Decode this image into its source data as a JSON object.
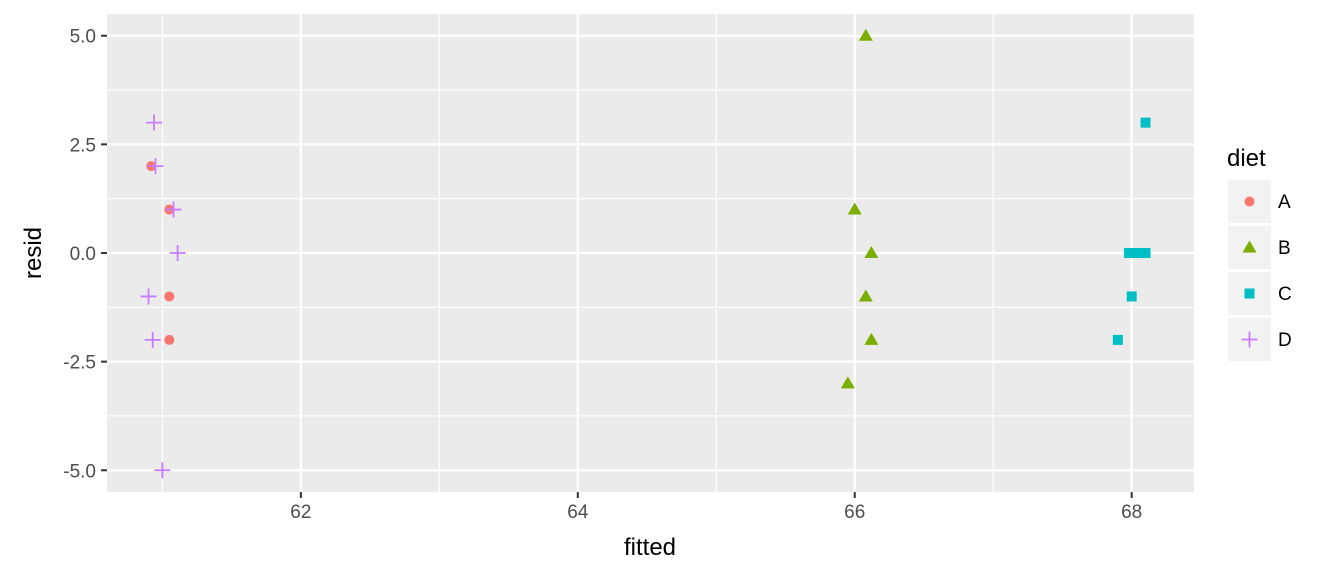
{
  "chart_data": {
    "type": "scatter",
    "xlabel": "fitted",
    "ylabel": "resid",
    "xlim": [
      60.6,
      68.45
    ],
    "ylim": [
      -5.5,
      5.5
    ],
    "x_ticks": [
      62,
      64,
      66,
      68
    ],
    "x_minor": [
      61,
      63,
      65,
      67
    ],
    "y_ticks": [
      5.0,
      2.5,
      0.0,
      -2.5,
      -5.0
    ],
    "y_tick_labels": [
      "5.0",
      "2.5",
      "0.0",
      "-2.5",
      "-5.0"
    ],
    "y_minor": [
      3.75,
      1.25,
      -1.25,
      -3.75
    ],
    "grid": true,
    "legend": {
      "title": "diet",
      "position": "right"
    },
    "series": [
      {
        "name": "A",
        "shape": "circle",
        "color": "#F8766D",
        "points": [
          [
            60.92,
            2.0
          ],
          [
            61.05,
            1.0
          ],
          [
            61.05,
            -1.0
          ],
          [
            61.05,
            -2.0
          ]
        ]
      },
      {
        "name": "B",
        "shape": "triangle",
        "color": "#7CAE00",
        "points": [
          [
            66.08,
            5.0
          ],
          [
            66.0,
            1.0
          ],
          [
            66.12,
            0.0
          ],
          [
            66.08,
            -1.0
          ],
          [
            66.12,
            -2.0
          ],
          [
            65.95,
            -3.0
          ]
        ]
      },
      {
        "name": "C",
        "shape": "square",
        "color": "#00BFC4",
        "points": [
          [
            68.1,
            3.0
          ],
          [
            67.98,
            0.0
          ],
          [
            68.04,
            0.0
          ],
          [
            68.1,
            0.0
          ],
          [
            68.0,
            -1.0
          ],
          [
            67.9,
            -2.0
          ]
        ]
      },
      {
        "name": "D",
        "shape": "plus",
        "color": "#C77CFF",
        "points": [
          [
            60.94,
            3.0
          ],
          [
            60.95,
            2.0
          ],
          [
            61.08,
            1.0
          ],
          [
            61.11,
            0.0
          ],
          [
            60.9,
            -1.0
          ],
          [
            60.93,
            -2.0
          ],
          [
            61.0,
            -5.0
          ]
        ]
      }
    ]
  }
}
